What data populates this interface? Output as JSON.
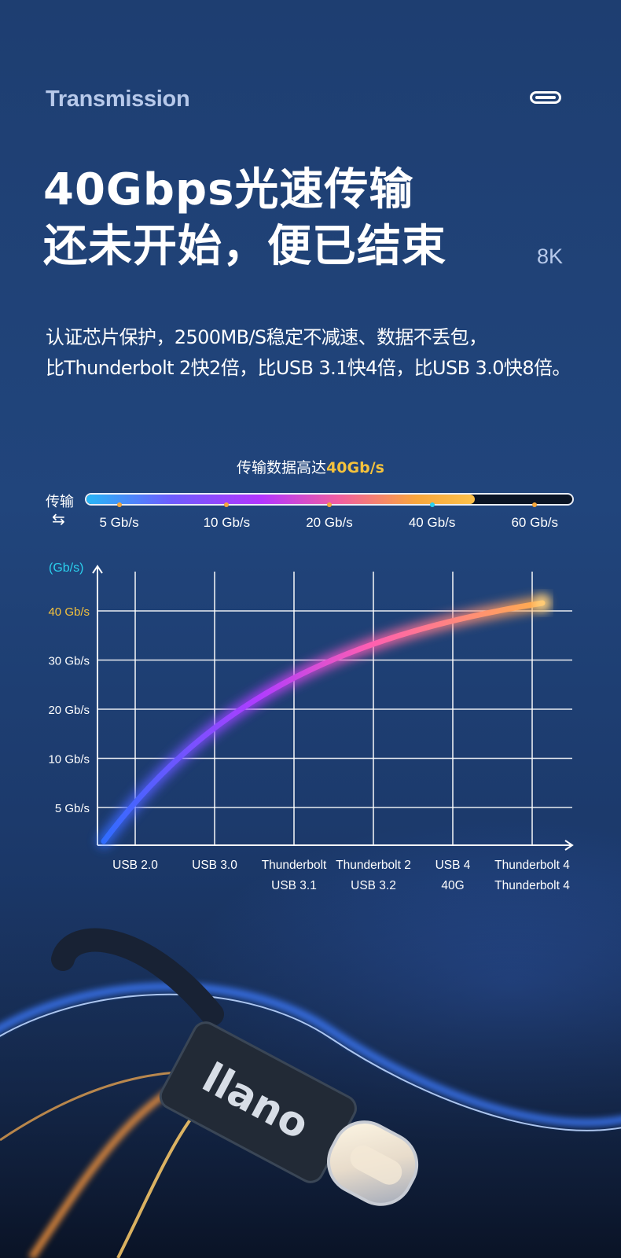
{
  "header": {
    "section_label": "Transmission",
    "headline_line1": "40Gbps光速传输",
    "headline_line2": "还未开始，便已结束",
    "badge": "8K"
  },
  "description": {
    "line1": "认证芯片保护，2500MB/S稳定不减速、数据不丢包，",
    "line2": "比Thunderbolt 2快2倍，比USB 3.1快4倍，比USB 3.0快8倍。"
  },
  "speed_bar": {
    "title_prefix": "传输数据高达",
    "title_highlight": "40Gb/s",
    "side_label": "传输",
    "fill_fraction": 0.8,
    "ticks": [
      {
        "label": "5 Gb/s",
        "position": 0.07
      },
      {
        "label": "10 Gb/s",
        "position": 0.29
      },
      {
        "label": "20 Gb/s",
        "position": 0.5
      },
      {
        "label": "40 Gb/s",
        "position": 0.71,
        "active": true
      },
      {
        "label": "60 Gb/s",
        "position": 0.92
      }
    ]
  },
  "chart_data": {
    "type": "line",
    "ylabel": "(Gb/s)",
    "y_ticks": [
      "5 Gb/s",
      "10 Gb/s",
      "20 Gb/s",
      "30 Gb/s",
      "40 Gb/s"
    ],
    "highlight_y_tick": "40 Gb/s",
    "categories": [
      [
        "USB 2.0"
      ],
      [
        "USB 3.0"
      ],
      [
        "Thunderbolt",
        "USB 3.1"
      ],
      [
        "Thunderbolt 2",
        "USB 3.2"
      ],
      [
        "USB 4",
        "40G"
      ],
      [
        "Thunderbolt 4",
        "Thunderbolt 4"
      ]
    ],
    "colors": {
      "start": "#2f6dff",
      "mid": "#b03cff",
      "pink": "#ff5fb0",
      "end": "#ffb347",
      "axis_label": "#2bd0ee",
      "highlight": "#f5c23c"
    },
    "grid": true
  },
  "product": {
    "brand": "llano"
  },
  "colors": {
    "accent_yellow": "#f5c23c",
    "muted_text": "#b7c9ea"
  }
}
